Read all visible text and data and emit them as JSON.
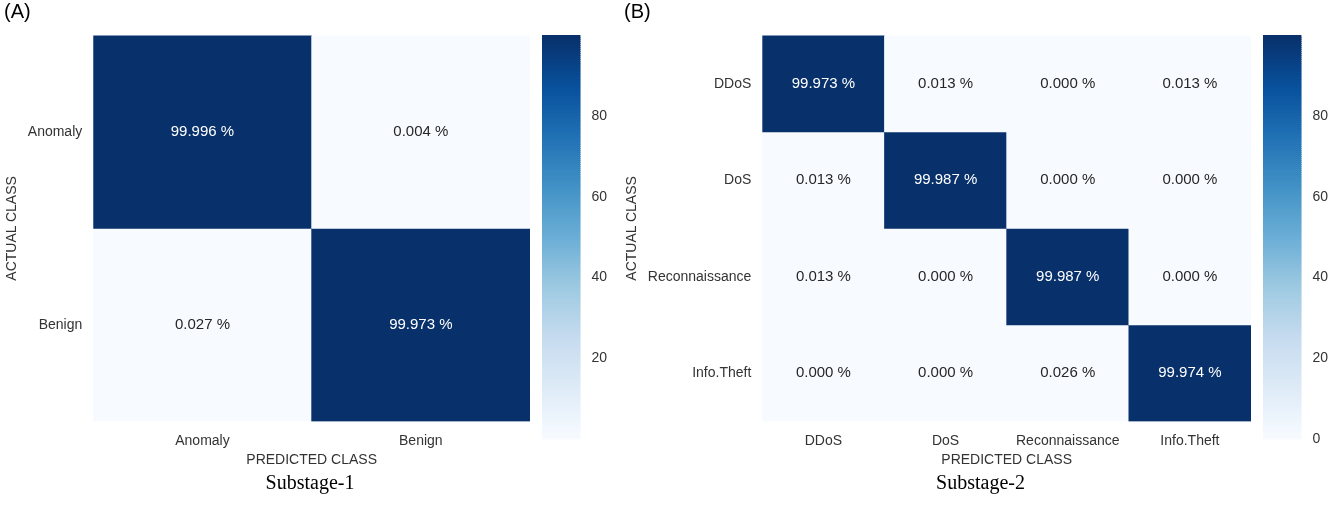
{
  "chart_data": [
    {
      "type": "heatmap",
      "title": "(A)",
      "xlabel": "PREDICTED CLASS",
      "ylabel": "ACTUAL CLASS",
      "categories": [
        "Anomaly",
        "Benign"
      ],
      "y_categories": [
        "Anomaly",
        "Benign"
      ],
      "cells": [
        [
          99.996,
          0.004
        ],
        [
          0.027,
          99.973
        ]
      ],
      "cell_labels": [
        [
          "99.996 %",
          "0.004 %"
        ],
        [
          "0.027 %",
          "99.973 %"
        ]
      ],
      "clim": [
        0.004,
        99.996
      ],
      "cticks": [
        20,
        40,
        60,
        80
      ],
      "annotations": [
        "Substage-1"
      ]
    },
    {
      "type": "heatmap",
      "title": "(B)",
      "xlabel": "PREDICTED CLASS",
      "ylabel": "ACTUAL CLASS",
      "categories": [
        "DDoS",
        "DoS",
        "Reconnaissance",
        "Info.Theft"
      ],
      "y_categories": [
        "DDoS",
        "DoS",
        "Reconnaissance",
        "Info.Theft"
      ],
      "cells": [
        [
          99.973,
          0.013,
          0.0,
          0.013
        ],
        [
          0.013,
          99.987,
          0.0,
          0.0
        ],
        [
          0.013,
          0.0,
          99.987,
          0.0
        ],
        [
          0.0,
          0.0,
          0.026,
          99.974
        ]
      ],
      "cell_labels": [
        [
          "99.973 %",
          "0.013 %",
          "0.000 %",
          "0.013 %"
        ],
        [
          "0.013 %",
          "99.987 %",
          "0.000 %",
          "0.000 %"
        ],
        [
          "0.013 %",
          "0.000 %",
          "99.987 %",
          "0.000 %"
        ],
        [
          "0.000 %",
          "0.000 %",
          "0.026 %",
          "99.974 %"
        ]
      ],
      "clim": [
        0,
        99.987
      ],
      "cticks": [
        0,
        20,
        40,
        60,
        80
      ],
      "annotations": [
        "Substage-2"
      ]
    }
  ]
}
